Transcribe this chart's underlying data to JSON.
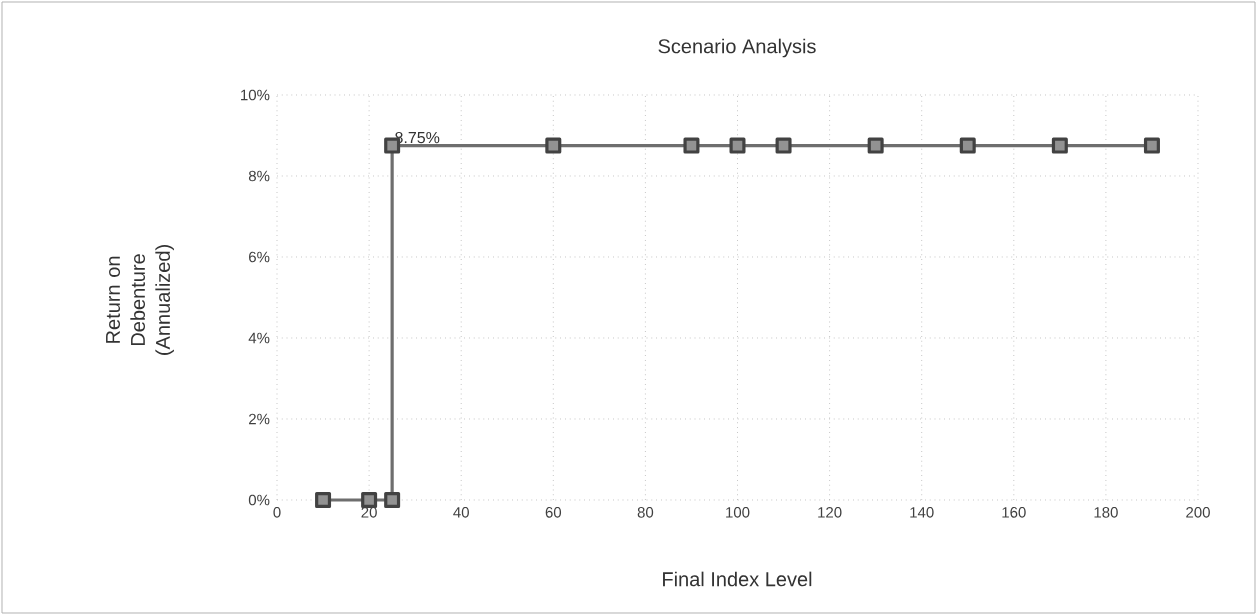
{
  "chart_data": {
    "type": "line",
    "title": "Scenario Analysis",
    "xlabel": "Final Index Level",
    "ylabel": "Return on Debenture (Annualized)",
    "x": [
      10,
      20,
      25,
      25,
      60,
      90,
      100,
      110,
      130,
      150,
      170,
      190
    ],
    "series": [
      {
        "color": "#6e6e6e",
        "values": [
          0,
          0,
          0,
          8.75,
          8.75,
          8.75,
          8.75,
          8.75,
          8.75,
          8.75,
          8.75,
          8.75
        ]
      }
    ],
    "xlim": [
      0,
      200
    ],
    "xticks": [
      0,
      20,
      40,
      60,
      80,
      100,
      120,
      140,
      160,
      180,
      200
    ],
    "ylim": [
      0,
      10
    ],
    "yticks": [
      {
        "value": 0,
        "label": "0%"
      },
      {
        "value": 2,
        "label": "2%"
      },
      {
        "value": 4,
        "label": "4%"
      },
      {
        "value": 6,
        "label": "6%"
      },
      {
        "value": 8,
        "label": "8%"
      },
      {
        "value": 10,
        "label": "10%"
      }
    ],
    "annotations": [
      {
        "text": "8.75%",
        "x": 25,
        "y": 8.75
      }
    ],
    "grid": true,
    "marker": "square",
    "line_style": "solid"
  }
}
